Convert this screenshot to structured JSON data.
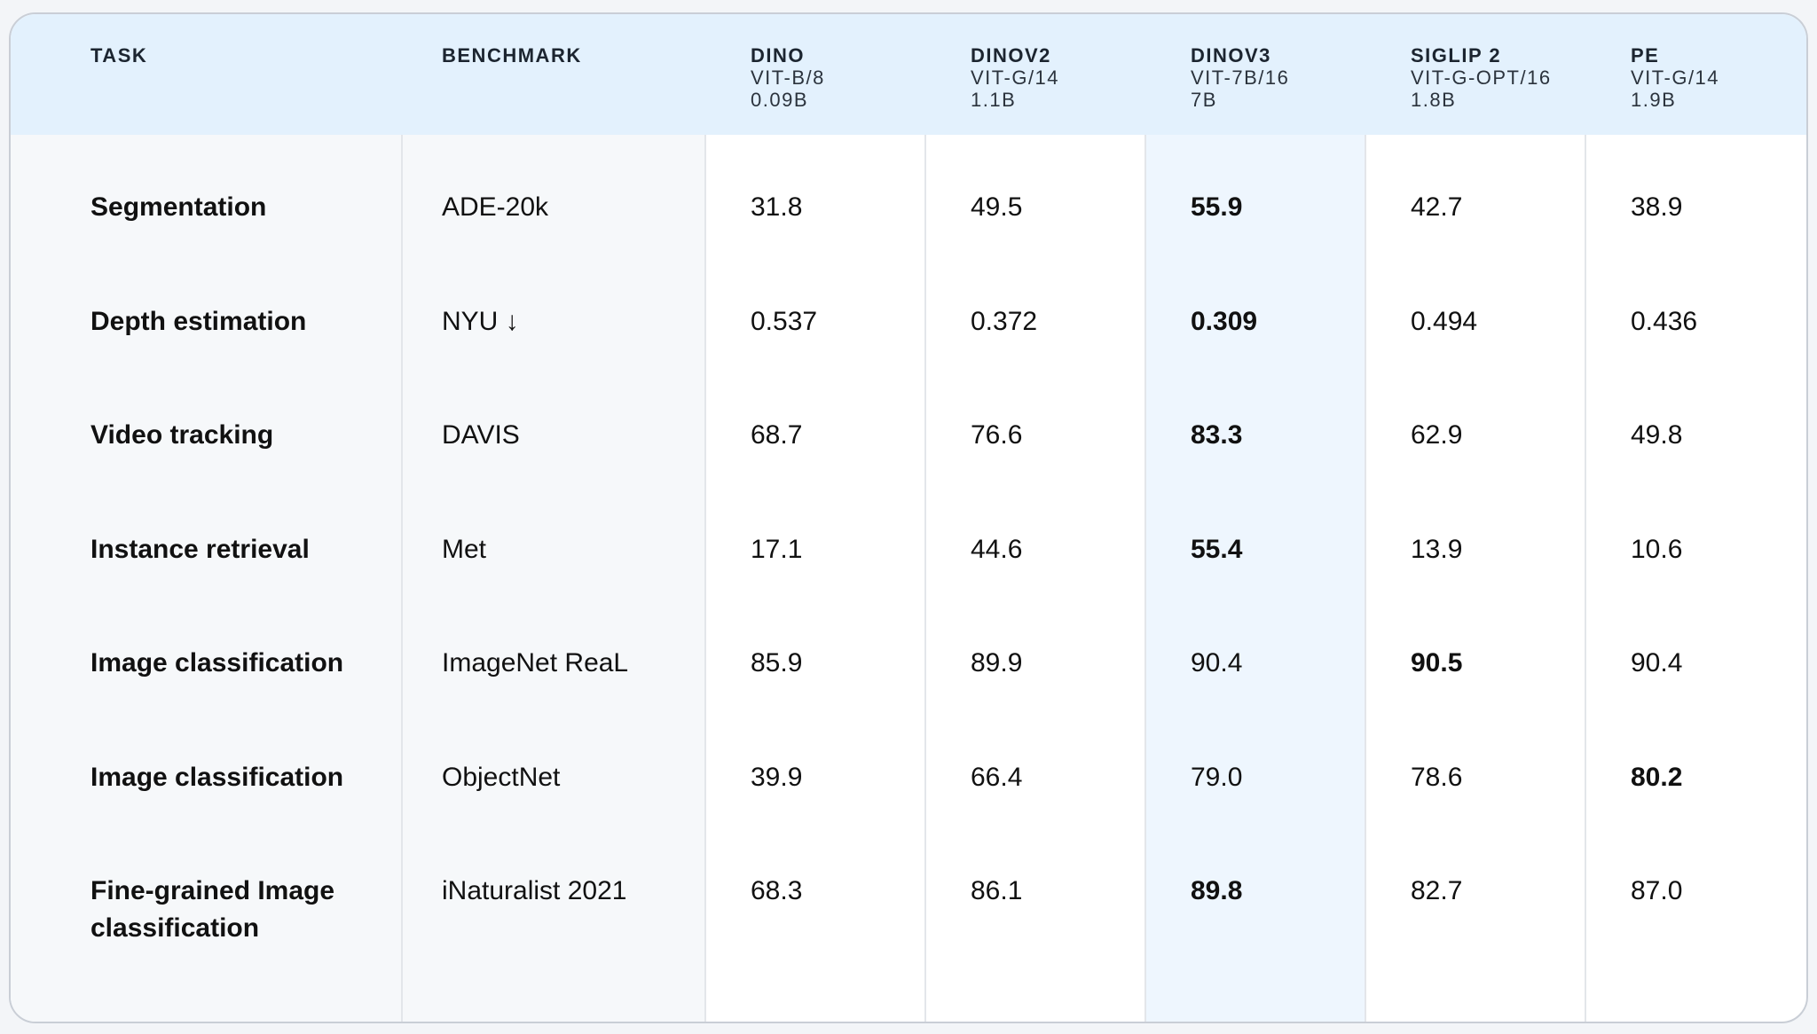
{
  "table": {
    "headers": {
      "task": "TASK",
      "benchmark": "BENCHMARK",
      "models": [
        {
          "name": "DINO",
          "arch": "VIT-B/8",
          "params": "0.09B"
        },
        {
          "name": "DINOV2",
          "arch": "VIT-G/14",
          "params": "1.1B"
        },
        {
          "name": "DINOV3",
          "arch": "VIT-7B/16",
          "params": "7B"
        },
        {
          "name": "SIGLIP 2",
          "arch": "VIT-G-OPT/16",
          "params": "1.8B"
        },
        {
          "name": "PE",
          "arch": "VIT-G/14",
          "params": "1.9B"
        }
      ]
    },
    "rows": [
      {
        "task": "Segmentation",
        "benchmark": "ADE-20k",
        "values": [
          "31.8",
          "49.5",
          "55.9",
          "42.7",
          "38.9"
        ],
        "best_index": 2
      },
      {
        "task": "Depth estimation",
        "benchmark": "NYU ↓",
        "values": [
          "0.537",
          "0.372",
          "0.309",
          "0.494",
          "0.436"
        ],
        "best_index": 2
      },
      {
        "task": "Video tracking",
        "benchmark": "DAVIS",
        "values": [
          "68.7",
          "76.6",
          "83.3",
          "62.9",
          "49.8"
        ],
        "best_index": 2
      },
      {
        "task": "Instance retrieval",
        "benchmark": "Met",
        "values": [
          "17.1",
          "44.6",
          "55.4",
          "13.9",
          "10.6"
        ],
        "best_index": 2
      },
      {
        "task": "Image classification",
        "benchmark": "ImageNet ReaL",
        "values": [
          "85.9",
          "89.9",
          "90.4",
          "90.5",
          "90.4"
        ],
        "best_index": 3
      },
      {
        "task": "Image classification",
        "benchmark": "ObjectNet",
        "values": [
          "39.9",
          "66.4",
          "79.0",
          "78.6",
          "80.2"
        ],
        "best_index": 4
      },
      {
        "task": "Fine-grained Image classification",
        "benchmark": "iNaturalist 2021",
        "values": [
          "68.3",
          "86.1",
          "89.8",
          "82.7",
          "87.0"
        ],
        "best_index": 2
      }
    ]
  },
  "colors": {
    "header_bg": "#e3f1fd",
    "highlight_column_bg": "#eef6fe",
    "label_column_bg": "#f6f8fa",
    "border": "#c9ced6"
  }
}
